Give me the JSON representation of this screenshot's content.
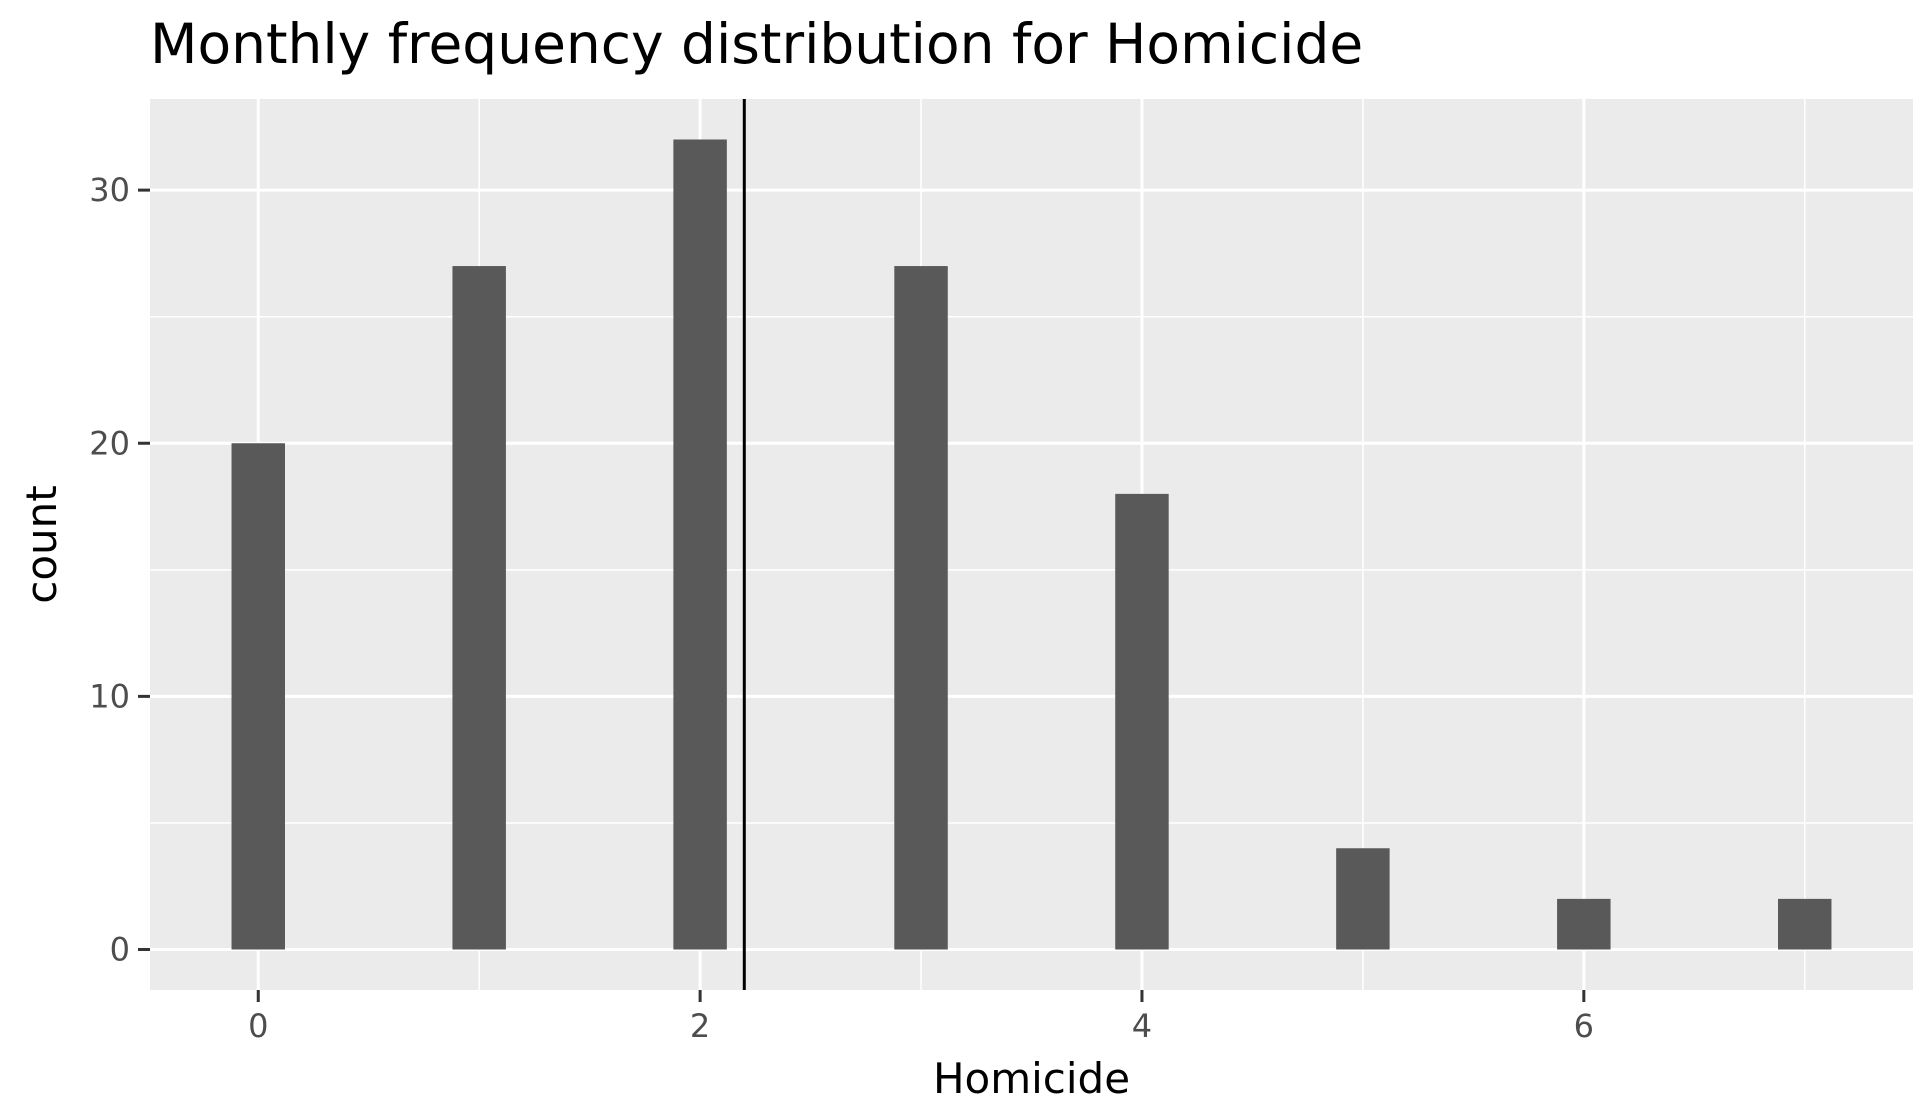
{
  "chart_data": {
    "type": "bar",
    "title": "Monthly frequency distribution for Homicide",
    "xlabel": "Homicide",
    "ylabel": "count",
    "x": [
      0,
      1,
      2,
      3,
      4,
      5,
      6,
      7
    ],
    "values": [
      20,
      27,
      32,
      27,
      18,
      4,
      2,
      2
    ],
    "xlim": [
      -0.49,
      7.49
    ],
    "ylim": [
      -1.6,
      33.6
    ],
    "x_ticks": [
      0,
      2,
      4,
      6
    ],
    "y_ticks": [
      0,
      10,
      20,
      30
    ],
    "reference_line_x": 2.2,
    "grid": true,
    "legend": "none",
    "colors": {
      "bar": "#595959",
      "panel_background": "#ebebeb",
      "grid": "#ffffff",
      "reference_line": "#000000",
      "tick_text": "#4d4d4d"
    }
  }
}
